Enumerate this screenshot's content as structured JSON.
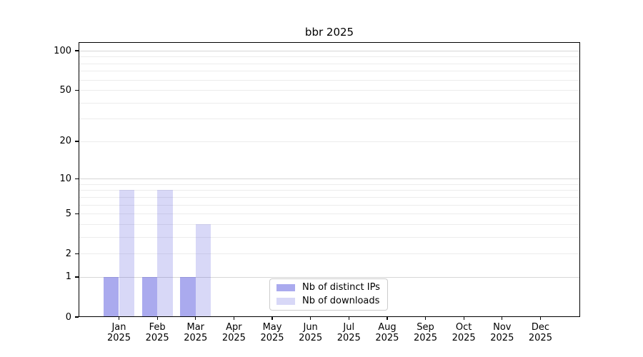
{
  "chart_data": {
    "type": "bar",
    "title": "bbr 2025",
    "categories": [
      "Jan",
      "Feb",
      "Mar",
      "Apr",
      "May",
      "Jun",
      "Jul",
      "Aug",
      "Sep",
      "Oct",
      "Nov",
      "Dec"
    ],
    "category_year": "2025",
    "series": [
      {
        "name": "Nb of distinct IPs",
        "color": "rgba(85,85,221,0.50)",
        "values": [
          1,
          1,
          1,
          0,
          0,
          0,
          0,
          0,
          0,
          0,
          0,
          0
        ]
      },
      {
        "name": "Nb of downloads",
        "color": "rgba(85,85,221,0.23)",
        "values": [
          8,
          8,
          4,
          0,
          0,
          0,
          0,
          0,
          0,
          0,
          0,
          0
        ]
      }
    ],
    "xlabel": "",
    "ylabel": "",
    "y_axis": {
      "scale": "log10(value+1)",
      "tick_labels": [
        0,
        1,
        2,
        5,
        10,
        20,
        50,
        100
      ],
      "major_gridlines": [
        1,
        10,
        100
      ],
      "minor_gridlines": [
        2,
        3,
        4,
        5,
        6,
        7,
        8,
        9,
        20,
        30,
        40,
        50,
        60,
        70,
        80,
        90
      ],
      "ylim_top_value": 115
    },
    "grid": true,
    "legend_position": "bottom-center",
    "colors": {
      "bar_distinct_ips_on_white": "#aaaaee",
      "bar_downloads_on_white": "#d9d9f7",
      "grid_minor": "#ececec",
      "grid_major": "#d6d6d6",
      "axis_frame": "#000000",
      "legend_border": "#cccccc"
    }
  }
}
